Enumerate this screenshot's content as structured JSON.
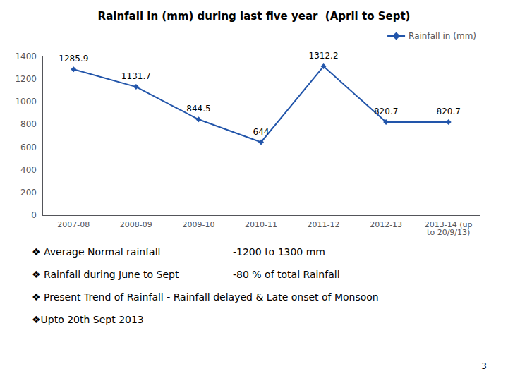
{
  "chart_data": {
    "type": "line",
    "title": "Rainfall in (mm) during last five year  (April to Sept)",
    "categories": [
      "2007-08",
      "2008-09",
      "2009-10",
      "2010-11",
      "2011-12",
      "2012-13",
      "2013-14 (up\nto 20/9/13)"
    ],
    "series": [
      {
        "name": "Rainfall in (mm)",
        "color": "#2255aa",
        "marker": "diamond",
        "values": [
          1285.9,
          1131.7,
          844.5,
          644,
          1312.2,
          820.7,
          820.7
        ]
      }
    ],
    "ylim": [
      0,
      1400
    ],
    "yticks": [
      0,
      200,
      400,
      600,
      800,
      1000,
      1200,
      1400
    ],
    "grid": false,
    "legend": "upper right",
    "data_labels": true,
    "annotations": [
      [
        "❖ Average Normal rainfall",
        "-1200 to 1300 mm"
      ],
      [
        "❖ Rainfall during June to Sept",
        "-80 % of total Rainfall"
      ],
      [
        "❖ Present Trend of Rainfall - Rainfall delayed & Late onset of Monsoon"
      ],
      [
        "❖Upto 20th Sept 2013"
      ]
    ],
    "footer": "3"
  }
}
